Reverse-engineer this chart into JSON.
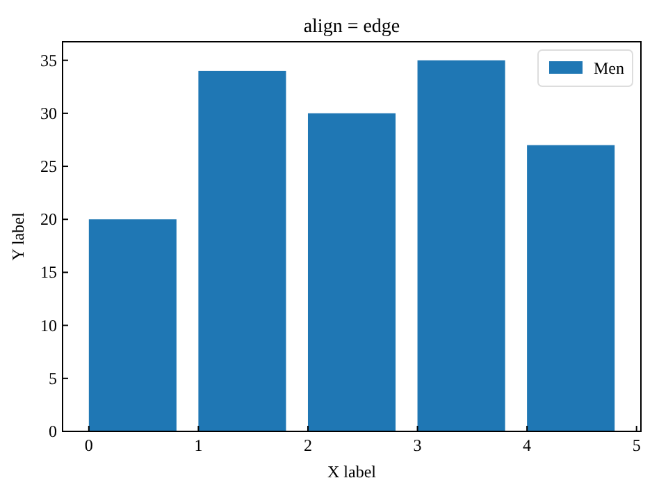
{
  "chart_data": {
    "type": "bar",
    "title": "align = edge",
    "xlabel": "X label",
    "ylabel": "Y label",
    "x": [
      0.4,
      1.4,
      2.4,
      3.4,
      4.4
    ],
    "series": [
      {
        "name": "Men",
        "color": "#1f77b4",
        "values": [
          20,
          34,
          30,
          35,
          27
        ]
      }
    ],
    "xlim": [
      -0.24,
      5.04
    ],
    "xticks": [
      0,
      1,
      2,
      3,
      4,
      5
    ],
    "ylim": [
      0,
      36.75
    ],
    "yticks": [
      0,
      5,
      10,
      15,
      20,
      25,
      30,
      35
    ],
    "grid": false,
    "legend": "top right"
  }
}
